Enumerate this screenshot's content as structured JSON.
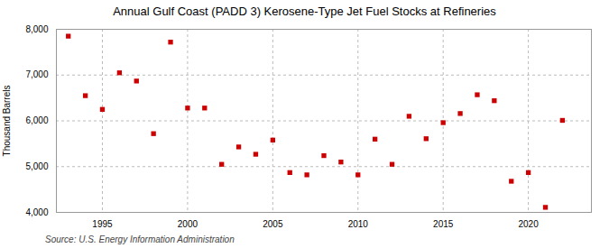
{
  "chart_data": {
    "type": "scatter",
    "title": "Annual Gulf Coast (PADD 3) Kerosene-Type Jet Fuel Stocks at Refineries",
    "ylabel": "Thousand Barrels",
    "source": "Source: U.S. Energy Information Administration",
    "x": [
      1993,
      1994,
      1995,
      1996,
      1997,
      1998,
      1999,
      2000,
      2001,
      2002,
      2003,
      2004,
      2005,
      2006,
      2007,
      2008,
      2009,
      2010,
      2011,
      2012,
      2013,
      2014,
      2015,
      2016,
      2017,
      2018,
      2019,
      2020,
      2021,
      2022
    ],
    "values": [
      7850,
      6550,
      6250,
      7050,
      6870,
      5720,
      7720,
      6280,
      6280,
      5050,
      5430,
      5270,
      5580,
      4870,
      4820,
      5240,
      5100,
      4820,
      5600,
      5050,
      6100,
      5610,
      5960,
      6160,
      6570,
      6440,
      4680,
      4870,
      4110,
      6010
    ],
    "color": "#cc0000",
    "marker": "square",
    "xlim": [
      1992.3,
      2023.7
    ],
    "xticks": [
      1995,
      2000,
      2005,
      2010,
      2015,
      2020
    ],
    "ylim": [
      4000,
      8000
    ],
    "yticks": [
      {
        "value": 4000,
        "label": "4,000"
      },
      {
        "value": 5000,
        "label": "5,000"
      },
      {
        "value": 6000,
        "label": "6,000"
      },
      {
        "value": 7000,
        "label": "7,000"
      },
      {
        "value": 8000,
        "label": "8,000"
      }
    ],
    "grid": true
  }
}
